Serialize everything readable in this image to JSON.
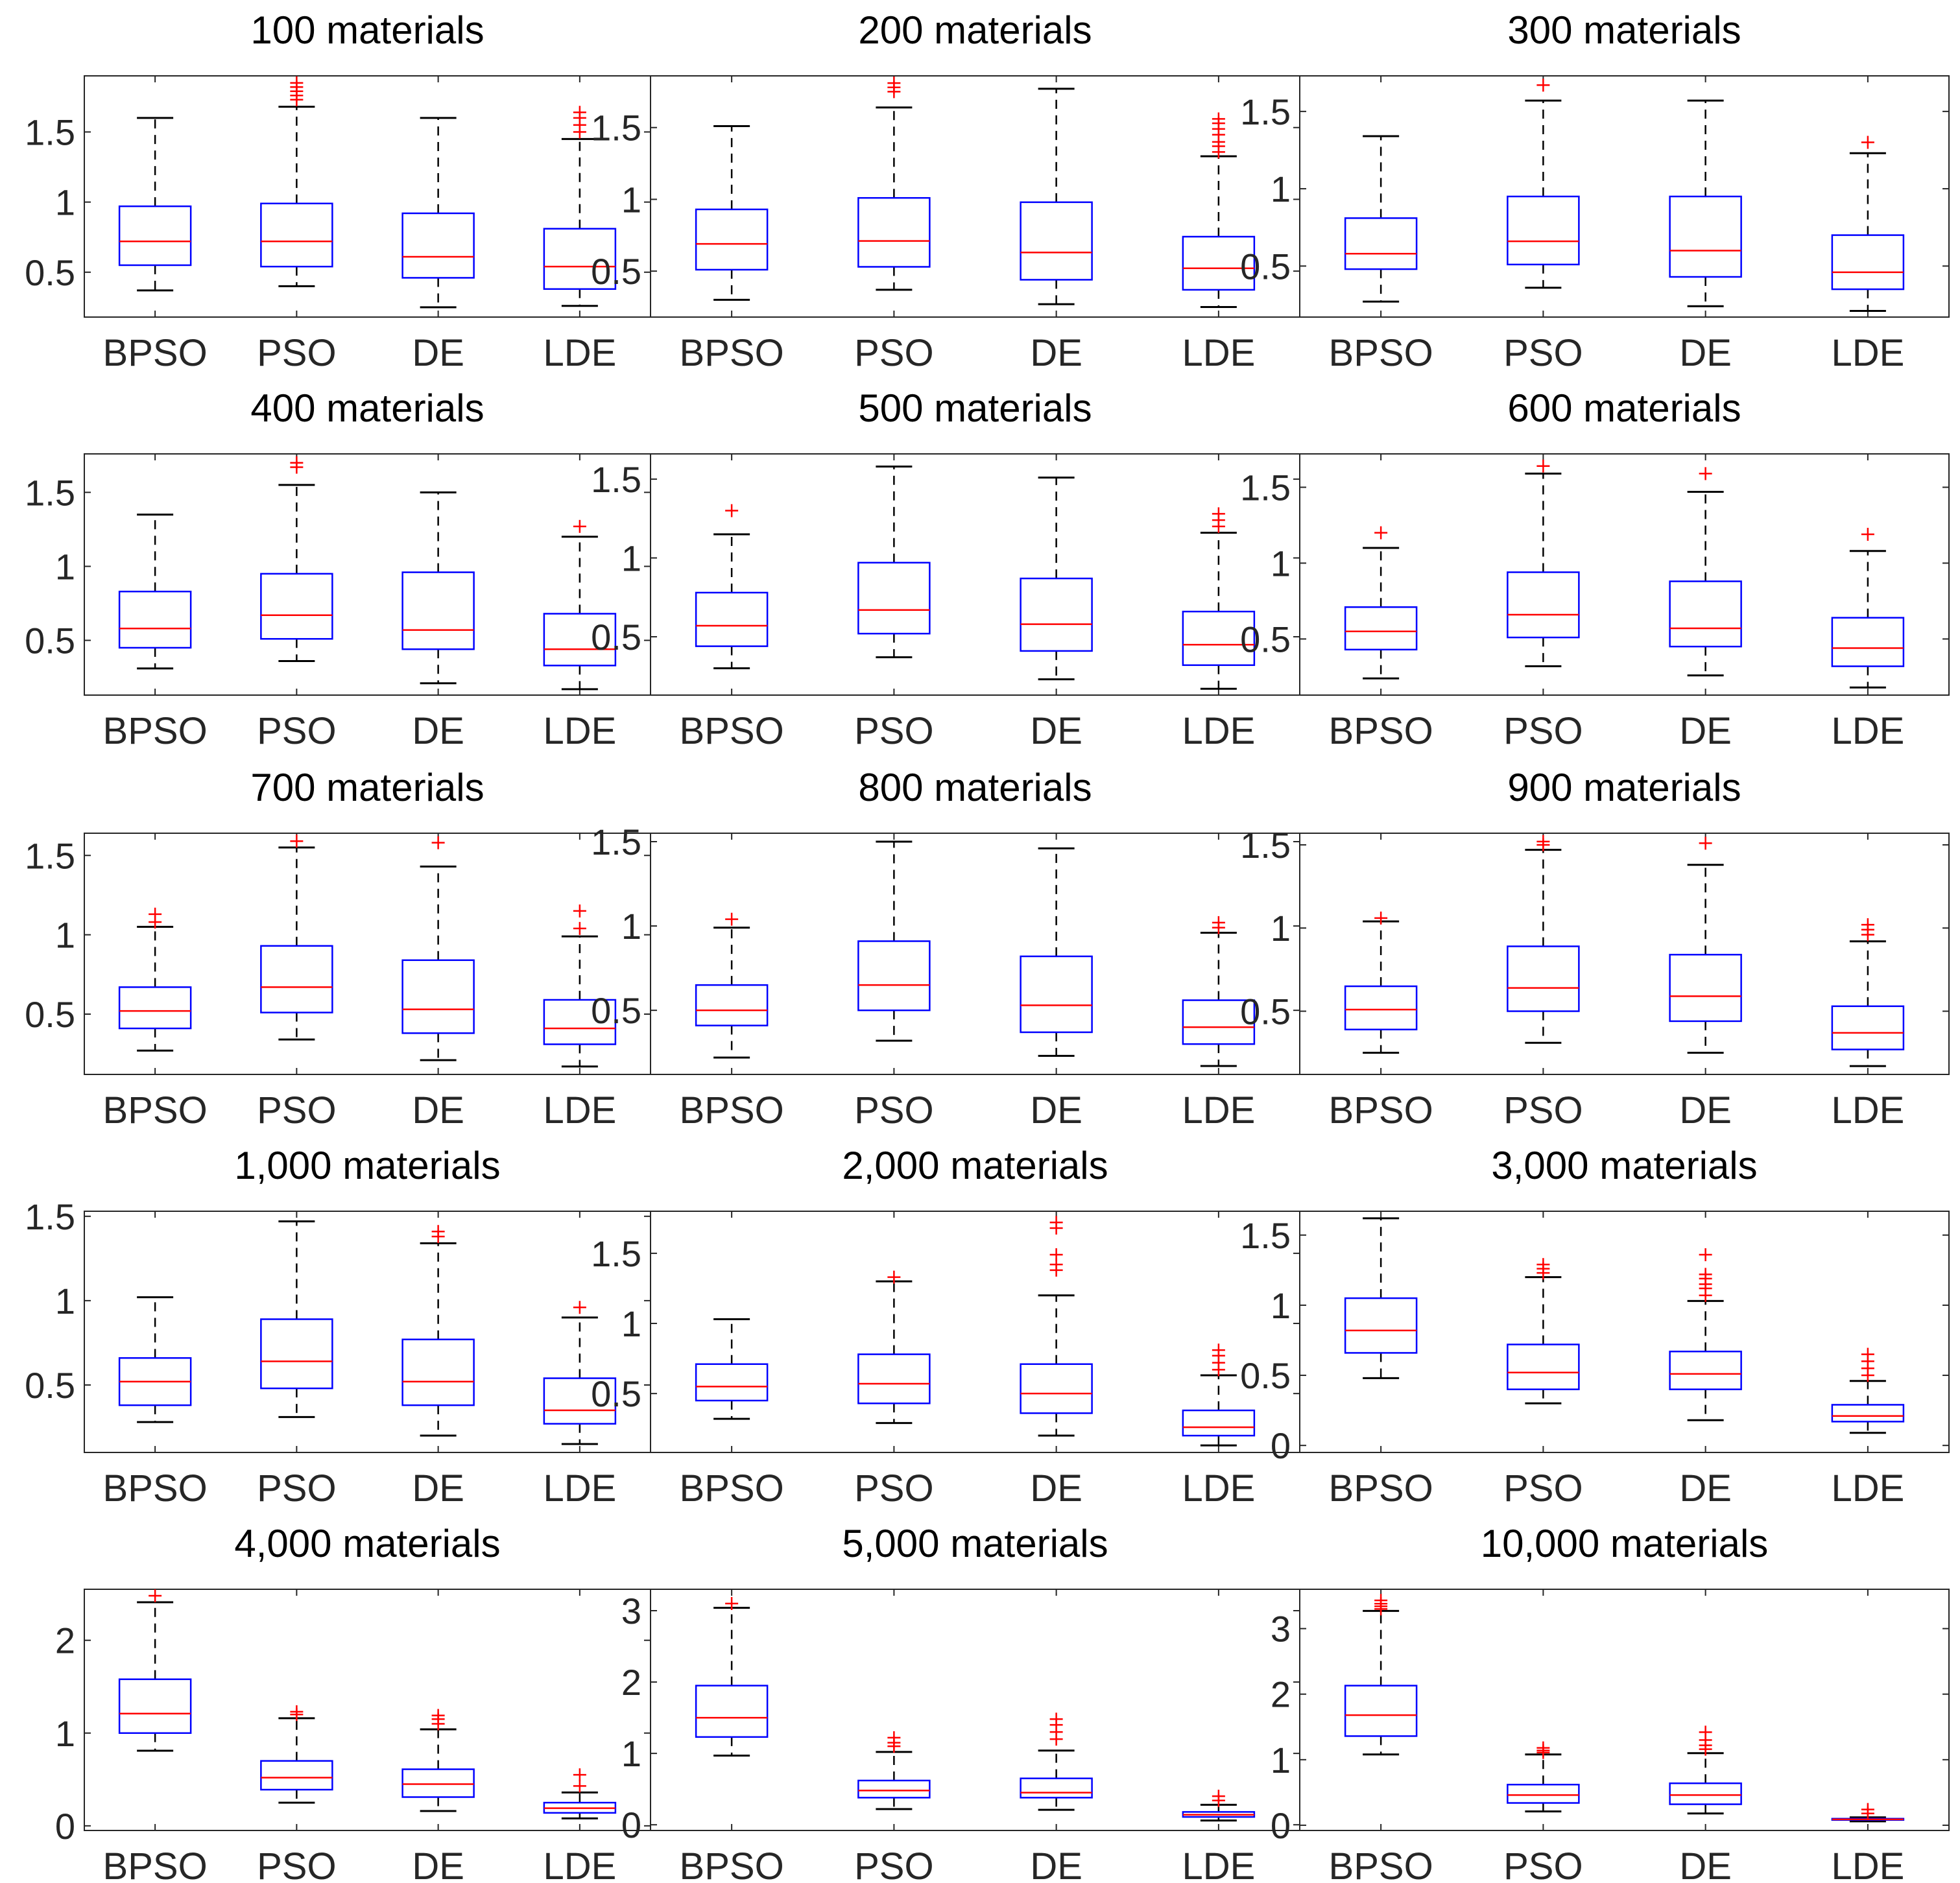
{
  "figure": {
    "colors": {
      "box": "#0000ff",
      "median": "#ff0000",
      "outlier": "#ff0000",
      "whisker": "#000000",
      "axis": "#262626",
      "title": "#000000",
      "tick": "#262626"
    }
  },
  "chart_data": [
    {
      "type": "box",
      "title": "100 materials",
      "categories": [
        "BPSO",
        "PSO",
        "DE",
        "LDE"
      ],
      "ylim": [
        0.18,
        1.9
      ],
      "yticks": [
        0.5,
        1,
        1.5
      ],
      "ytick_labels": [
        "0.5",
        "1",
        "1.5"
      ],
      "boxes": [
        {
          "whislo": 0.37,
          "q1": 0.55,
          "med": 0.72,
          "q3": 0.97,
          "whishi": 1.6,
          "fliers": []
        },
        {
          "whislo": 0.4,
          "q1": 0.54,
          "med": 0.72,
          "q3": 0.99,
          "whishi": 1.68,
          "fliers": [
            1.73,
            1.76,
            1.79,
            1.82,
            1.85
          ]
        },
        {
          "whislo": 0.25,
          "q1": 0.46,
          "med": 0.61,
          "q3": 0.92,
          "whishi": 1.6,
          "fliers": []
        },
        {
          "whislo": 0.26,
          "q1": 0.38,
          "med": 0.54,
          "q3": 0.81,
          "whishi": 1.45,
          "fliers": [
            1.5,
            1.55,
            1.6,
            1.64
          ]
        }
      ]
    },
    {
      "type": "box",
      "title": "200 materials",
      "categories": [
        "BPSO",
        "PSO",
        "DE",
        "LDE"
      ],
      "ylim": [
        0.18,
        1.86
      ],
      "yticks": [
        0.5,
        1,
        1.5
      ],
      "ytick_labels": [
        "0.5",
        "1",
        "1.5"
      ],
      "boxes": [
        {
          "whislo": 0.3,
          "q1": 0.51,
          "med": 0.69,
          "q3": 0.93,
          "whishi": 1.51,
          "fliers": []
        },
        {
          "whislo": 0.37,
          "q1": 0.53,
          "med": 0.71,
          "q3": 1.01,
          "whishi": 1.64,
          "fliers": [
            1.75,
            1.78,
            1.81
          ]
        },
        {
          "whislo": 0.27,
          "q1": 0.44,
          "med": 0.63,
          "q3": 0.98,
          "whishi": 1.77,
          "fliers": []
        },
        {
          "whislo": 0.25,
          "q1": 0.37,
          "med": 0.52,
          "q3": 0.74,
          "whishi": 1.3,
          "fliers": [
            1.33,
            1.37,
            1.4,
            1.45,
            1.49,
            1.53,
            1.56
          ]
        }
      ]
    },
    {
      "type": "box",
      "title": "300 materials",
      "categories": [
        "BPSO",
        "PSO",
        "DE",
        "LDE"
      ],
      "ylim": [
        0.17,
        1.73
      ],
      "yticks": [
        0.5,
        1,
        1.5
      ],
      "ytick_labels": [
        "0.5",
        "1",
        "1.5"
      ],
      "boxes": [
        {
          "whislo": 0.27,
          "q1": 0.48,
          "med": 0.58,
          "q3": 0.81,
          "whishi": 1.34,
          "fliers": []
        },
        {
          "whislo": 0.36,
          "q1": 0.51,
          "med": 0.66,
          "q3": 0.95,
          "whishi": 1.57,
          "fliers": [
            1.67
          ]
        },
        {
          "whislo": 0.24,
          "q1": 0.43,
          "med": 0.6,
          "q3": 0.95,
          "whishi": 1.57,
          "fliers": []
        },
        {
          "whislo": 0.21,
          "q1": 0.35,
          "med": 0.46,
          "q3": 0.7,
          "whishi": 1.23,
          "fliers": [
            1.3
          ]
        }
      ]
    },
    {
      "type": "box",
      "title": "400 materials",
      "categories": [
        "BPSO",
        "PSO",
        "DE",
        "LDE"
      ],
      "ylim": [
        0.13,
        1.76
      ],
      "yticks": [
        0.5,
        1,
        1.5
      ],
      "ytick_labels": [
        "0.5",
        "1",
        "1.5"
      ],
      "boxes": [
        {
          "whislo": 0.31,
          "q1": 0.45,
          "med": 0.58,
          "q3": 0.83,
          "whishi": 1.35,
          "fliers": []
        },
        {
          "whislo": 0.36,
          "q1": 0.51,
          "med": 0.67,
          "q3": 0.95,
          "whishi": 1.55,
          "fliers": [
            1.67,
            1.7
          ]
        },
        {
          "whislo": 0.21,
          "q1": 0.44,
          "med": 0.57,
          "q3": 0.96,
          "whishi": 1.5,
          "fliers": []
        },
        {
          "whislo": 0.17,
          "q1": 0.33,
          "med": 0.44,
          "q3": 0.68,
          "whishi": 1.2,
          "fliers": [
            1.27
          ]
        }
      ]
    },
    {
      "type": "box",
      "title": "500 materials",
      "categories": [
        "BPSO",
        "PSO",
        "DE",
        "LDE"
      ],
      "ylim": [
        0.13,
        1.66
      ],
      "yticks": [
        0.5,
        1,
        1.5
      ],
      "ytick_labels": [
        "0.5",
        "1",
        "1.5"
      ],
      "boxes": [
        {
          "whislo": 0.3,
          "q1": 0.44,
          "med": 0.57,
          "q3": 0.78,
          "whishi": 1.15,
          "fliers": [
            1.3
          ]
        },
        {
          "whislo": 0.37,
          "q1": 0.52,
          "med": 0.67,
          "q3": 0.97,
          "whishi": 1.58,
          "fliers": []
        },
        {
          "whislo": 0.23,
          "q1": 0.41,
          "med": 0.58,
          "q3": 0.87,
          "whishi": 1.51,
          "fliers": []
        },
        {
          "whislo": 0.17,
          "q1": 0.32,
          "med": 0.45,
          "q3": 0.66,
          "whishi": 1.16,
          "fliers": [
            1.2,
            1.24,
            1.28
          ]
        }
      ]
    },
    {
      "type": "box",
      "title": "600 materials",
      "categories": [
        "BPSO",
        "PSO",
        "DE",
        "LDE"
      ],
      "ylim": [
        0.13,
        1.72
      ],
      "yticks": [
        0.5,
        1,
        1.5
      ],
      "ytick_labels": [
        "0.5",
        "1",
        "1.5"
      ],
      "boxes": [
        {
          "whislo": 0.24,
          "q1": 0.43,
          "med": 0.55,
          "q3": 0.71,
          "whishi": 1.1,
          "fliers": [
            1.2
          ]
        },
        {
          "whislo": 0.32,
          "q1": 0.51,
          "med": 0.66,
          "q3": 0.94,
          "whishi": 1.59,
          "fliers": [
            1.64
          ]
        },
        {
          "whislo": 0.26,
          "q1": 0.45,
          "med": 0.57,
          "q3": 0.88,
          "whishi": 1.47,
          "fliers": [
            1.59
          ]
        },
        {
          "whislo": 0.18,
          "q1": 0.32,
          "med": 0.44,
          "q3": 0.64,
          "whishi": 1.08,
          "fliers": [
            1.19
          ]
        }
      ]
    },
    {
      "type": "box",
      "title": "700 materials",
      "categories": [
        "BPSO",
        "PSO",
        "DE",
        "LDE"
      ],
      "ylim": [
        0.12,
        1.64
      ],
      "yticks": [
        0.5,
        1,
        1.5
      ],
      "ytick_labels": [
        "0.5",
        "1",
        "1.5"
      ],
      "boxes": [
        {
          "whislo": 0.27,
          "q1": 0.41,
          "med": 0.52,
          "q3": 0.67,
          "whishi": 1.05,
          "fliers": [
            1.08,
            1.13
          ]
        },
        {
          "whislo": 0.34,
          "q1": 0.51,
          "med": 0.67,
          "q3": 0.93,
          "whishi": 1.55,
          "fliers": [
            1.59
          ]
        },
        {
          "whislo": 0.21,
          "q1": 0.38,
          "med": 0.53,
          "q3": 0.84,
          "whishi": 1.43,
          "fliers": [
            1.58
          ]
        },
        {
          "whislo": 0.17,
          "q1": 0.31,
          "med": 0.41,
          "q3": 0.59,
          "whishi": 0.99,
          "fliers": [
            1.04,
            1.15
          ]
        }
      ]
    },
    {
      "type": "box",
      "title": "800 materials",
      "categories": [
        "BPSO",
        "PSO",
        "DE",
        "LDE"
      ],
      "ylim": [
        0.12,
        1.55
      ],
      "yticks": [
        0.5,
        1,
        1.5
      ],
      "ytick_labels": [
        "0.5",
        "1",
        "1.5"
      ],
      "boxes": [
        {
          "whislo": 0.22,
          "q1": 0.41,
          "med": 0.5,
          "q3": 0.65,
          "whishi": 0.99,
          "fliers": [
            1.04
          ]
        },
        {
          "whislo": 0.32,
          "q1": 0.5,
          "med": 0.65,
          "q3": 0.91,
          "whishi": 1.5,
          "fliers": []
        },
        {
          "whislo": 0.23,
          "q1": 0.37,
          "med": 0.53,
          "q3": 0.82,
          "whishi": 1.46,
          "fliers": []
        },
        {
          "whislo": 0.17,
          "q1": 0.3,
          "med": 0.4,
          "q3": 0.56,
          "whishi": 0.96,
          "fliers": [
            0.99,
            1.02
          ]
        }
      ]
    },
    {
      "type": "box",
      "title": "900 materials",
      "categories": [
        "BPSO",
        "PSO",
        "DE",
        "LDE"
      ],
      "ylim": [
        0.12,
        1.57
      ],
      "yticks": [
        0.5,
        1,
        1.5
      ],
      "ytick_labels": [
        "0.5",
        "1",
        "1.5"
      ],
      "boxes": [
        {
          "whislo": 0.25,
          "q1": 0.39,
          "med": 0.51,
          "q3": 0.65,
          "whishi": 1.04,
          "fliers": [
            1.06
          ]
        },
        {
          "whislo": 0.31,
          "q1": 0.5,
          "med": 0.64,
          "q3": 0.89,
          "whishi": 1.47,
          "fliers": [
            1.5,
            1.52
          ]
        },
        {
          "whislo": 0.25,
          "q1": 0.44,
          "med": 0.59,
          "q3": 0.84,
          "whishi": 1.38,
          "fliers": [
            1.51
          ]
        },
        {
          "whislo": 0.17,
          "q1": 0.27,
          "med": 0.37,
          "q3": 0.53,
          "whishi": 0.92,
          "fliers": [
            0.96,
            0.99,
            1.02
          ]
        }
      ]
    },
    {
      "type": "box",
      "title": "1,000 materials",
      "categories": [
        "BPSO",
        "PSO",
        "DE",
        "LDE"
      ],
      "ylim": [
        0.1,
        1.53
      ],
      "yticks": [
        0.5,
        1,
        1.5
      ],
      "ytick_labels": [
        "0.5",
        "1",
        "1.5"
      ],
      "boxes": [
        {
          "whislo": 0.28,
          "q1": 0.38,
          "med": 0.52,
          "q3": 0.66,
          "whishi": 1.02,
          "fliers": []
        },
        {
          "whislo": 0.31,
          "q1": 0.48,
          "med": 0.64,
          "q3": 0.89,
          "whishi": 1.47,
          "fliers": []
        },
        {
          "whislo": 0.2,
          "q1": 0.38,
          "med": 0.52,
          "q3": 0.77,
          "whishi": 1.34,
          "fliers": [
            1.38,
            1.41
          ]
        },
        {
          "whislo": 0.15,
          "q1": 0.27,
          "med": 0.35,
          "q3": 0.54,
          "whishi": 0.9,
          "fliers": [
            0.96
          ]
        }
      ]
    },
    {
      "type": "box",
      "title": "2,000 materials",
      "categories": [
        "BPSO",
        "PSO",
        "DE",
        "LDE"
      ],
      "ylim": [
        0.08,
        1.8
      ],
      "yticks": [
        0.5,
        1,
        1.5
      ],
      "ytick_labels": [
        "0.5",
        "1",
        "1.5"
      ],
      "boxes": [
        {
          "whislo": 0.32,
          "q1": 0.45,
          "med": 0.55,
          "q3": 0.71,
          "whishi": 1.03,
          "fliers": []
        },
        {
          "whislo": 0.29,
          "q1": 0.43,
          "med": 0.57,
          "q3": 0.78,
          "whishi": 1.3,
          "fliers": [
            1.33
          ]
        },
        {
          "whislo": 0.2,
          "q1": 0.36,
          "med": 0.5,
          "q3": 0.71,
          "whishi": 1.2,
          "fliers": [
            1.38,
            1.42,
            1.49,
            1.68,
            1.72
          ]
        },
        {
          "whislo": 0.13,
          "q1": 0.2,
          "med": 0.26,
          "q3": 0.38,
          "whishi": 0.63,
          "fliers": [
            0.67,
            0.72,
            0.77,
            0.81
          ]
        }
      ]
    },
    {
      "type": "box",
      "title": "3,000 materials",
      "categories": [
        "BPSO",
        "PSO",
        "DE",
        "LDE"
      ],
      "ylim": [
        -0.05,
        1.67
      ],
      "yticks": [
        0,
        0.5,
        1,
        1.5
      ],
      "ytick_labels": [
        "0",
        "0.5",
        "1",
        "1.5"
      ],
      "boxes": [
        {
          "whislo": 0.48,
          "q1": 0.66,
          "med": 0.82,
          "q3": 1.05,
          "whishi": 1.62,
          "fliers": []
        },
        {
          "whislo": 0.3,
          "q1": 0.4,
          "med": 0.52,
          "q3": 0.72,
          "whishi": 1.2,
          "fliers": [
            1.23,
            1.26,
            1.29
          ]
        },
        {
          "whislo": 0.18,
          "q1": 0.4,
          "med": 0.51,
          "q3": 0.67,
          "whishi": 1.03,
          "fliers": [
            1.07,
            1.12,
            1.15,
            1.19,
            1.22,
            1.36
          ]
        },
        {
          "whislo": 0.09,
          "q1": 0.17,
          "med": 0.21,
          "q3": 0.29,
          "whishi": 0.46,
          "fliers": [
            0.5,
            0.55,
            0.6,
            0.65
          ]
        }
      ]
    },
    {
      "type": "box",
      "title": "4,000 materials",
      "categories": [
        "BPSO",
        "PSO",
        "DE",
        "LDE"
      ],
      "ylim": [
        -0.05,
        2.55
      ],
      "yticks": [
        0,
        1,
        2
      ],
      "ytick_labels": [
        "0",
        "1",
        "2"
      ],
      "boxes": [
        {
          "whislo": 0.81,
          "q1": 1.0,
          "med": 1.21,
          "q3": 1.58,
          "whishi": 2.41,
          "fliers": [
            2.48
          ]
        },
        {
          "whislo": 0.25,
          "q1": 0.39,
          "med": 0.52,
          "q3": 0.7,
          "whishi": 1.16,
          "fliers": [
            1.2,
            1.23
          ]
        },
        {
          "whislo": 0.16,
          "q1": 0.31,
          "med": 0.45,
          "q3": 0.61,
          "whishi": 1.04,
          "fliers": [
            1.1,
            1.15,
            1.19
          ]
        },
        {
          "whislo": 0.08,
          "q1": 0.14,
          "med": 0.19,
          "q3": 0.25,
          "whishi": 0.36,
          "fliers": [
            0.43,
            0.55
          ]
        }
      ]
    },
    {
      "type": "box",
      "title": "5,000 materials",
      "categories": [
        "BPSO",
        "PSO",
        "DE",
        "LDE"
      ],
      "ylim": [
        -0.08,
        3.3
      ],
      "yticks": [
        0,
        1,
        2,
        3
      ],
      "ytick_labels": [
        "0",
        "1",
        "2",
        "3"
      ],
      "boxes": [
        {
          "whislo": 0.97,
          "q1": 1.23,
          "med": 1.5,
          "q3": 1.95,
          "whishi": 3.04,
          "fliers": [
            3.1
          ]
        },
        {
          "whislo": 0.22,
          "q1": 0.38,
          "med": 0.48,
          "q3": 0.62,
          "whishi": 1.02,
          "fliers": [
            1.1,
            1.15,
            1.22
          ]
        },
        {
          "whislo": 0.21,
          "q1": 0.38,
          "med": 0.45,
          "q3": 0.65,
          "whishi": 1.04,
          "fliers": [
            1.2,
            1.3,
            1.4,
            1.48
          ]
        },
        {
          "whislo": 0.06,
          "q1": 0.11,
          "med": 0.14,
          "q3": 0.18,
          "whishi": 0.28,
          "fliers": [
            0.34,
            0.4
          ]
        }
      ]
    },
    {
      "type": "box",
      "title": "10,000 materials",
      "categories": [
        "BPSO",
        "PSO",
        "DE",
        "LDE"
      ],
      "ylim": [
        -0.08,
        3.6
      ],
      "yticks": [
        0,
        1,
        2,
        3
      ],
      "ytick_labels": [
        "0",
        "1",
        "2",
        "3"
      ],
      "boxes": [
        {
          "whislo": 1.08,
          "q1": 1.36,
          "med": 1.68,
          "q3": 2.13,
          "whishi": 3.27,
          "fliers": [
            3.3,
            3.34,
            3.38,
            3.43
          ]
        },
        {
          "whislo": 0.21,
          "q1": 0.34,
          "med": 0.46,
          "q3": 0.62,
          "whishi": 1.08,
          "fliers": [
            1.11,
            1.14,
            1.18
          ]
        },
        {
          "whislo": 0.18,
          "q1": 0.32,
          "med": 0.46,
          "q3": 0.64,
          "whishi": 1.1,
          "fliers": [
            1.16,
            1.22,
            1.3,
            1.42
          ]
        },
        {
          "whislo": 0.06,
          "q1": 0.08,
          "med": 0.09,
          "q3": 0.1,
          "whishi": 0.12,
          "fliers": [
            0.18,
            0.24
          ]
        }
      ]
    }
  ]
}
